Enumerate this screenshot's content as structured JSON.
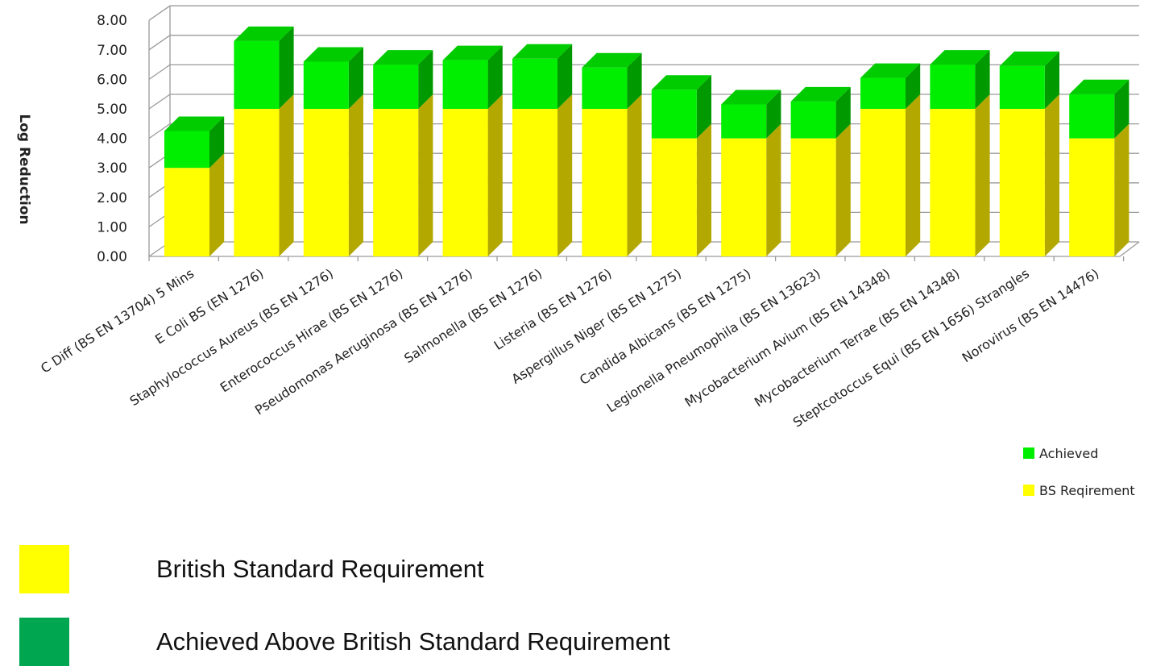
{
  "chart_data": {
    "type": "bar",
    "stacked": true,
    "three_d": true,
    "ylabel": "Log Reduction",
    "ylim": [
      0,
      8
    ],
    "yticks": [
      "0.00",
      "1.00",
      "2.00",
      "3.00",
      "4.00",
      "5.00",
      "6.00",
      "7.00",
      "8.00"
    ],
    "grid": true,
    "categories": [
      "C Diff (BS EN 13704) 5 Mins",
      "E Coli BS (EN 1276)",
      "Staphylococcus Aureus (BS EN 1276)",
      "Enterococcus Hirae (BS EN 1276)",
      "Pseudomonas Aeruginosa (BS EN 1276)",
      "Salmonella (BS EN 1276)",
      "Listeria (BS EN 1276)",
      "Aspergillus Niger (BS EN 1275)",
      "Candida Albicans (BS EN 1275)",
      "Legionella Pneumophila (BS EN 13623)",
      "Mycobacterium Avium (BS EN 14348)",
      "Mycobacterium Terrae (BS EN 14348)",
      "Steptcotoccus Equi (BS EN 1656) Strangles",
      "Norovirus (BS EN 14476)"
    ],
    "series": [
      {
        "name": "BS Reqirement",
        "color": "#ffff00",
        "values": [
          3,
          5,
          5,
          5,
          5,
          5,
          5,
          4,
          4,
          4,
          5,
          5,
          5,
          4
        ]
      },
      {
        "name": "Achieved",
        "color": "#00ee00",
        "values": [
          1.25,
          2.3,
          1.6,
          1.5,
          1.65,
          1.7,
          1.4,
          1.65,
          1.15,
          1.25,
          1.05,
          1.5,
          1.45,
          1.5
        ]
      }
    ],
    "legend_position": "bottom-right"
  },
  "key": {
    "items": [
      {
        "label": "British Standard Requirement",
        "color": "#ffff00"
      },
      {
        "label": "Achieved Above British Standard Requirement",
        "color": "#00a650"
      }
    ]
  }
}
